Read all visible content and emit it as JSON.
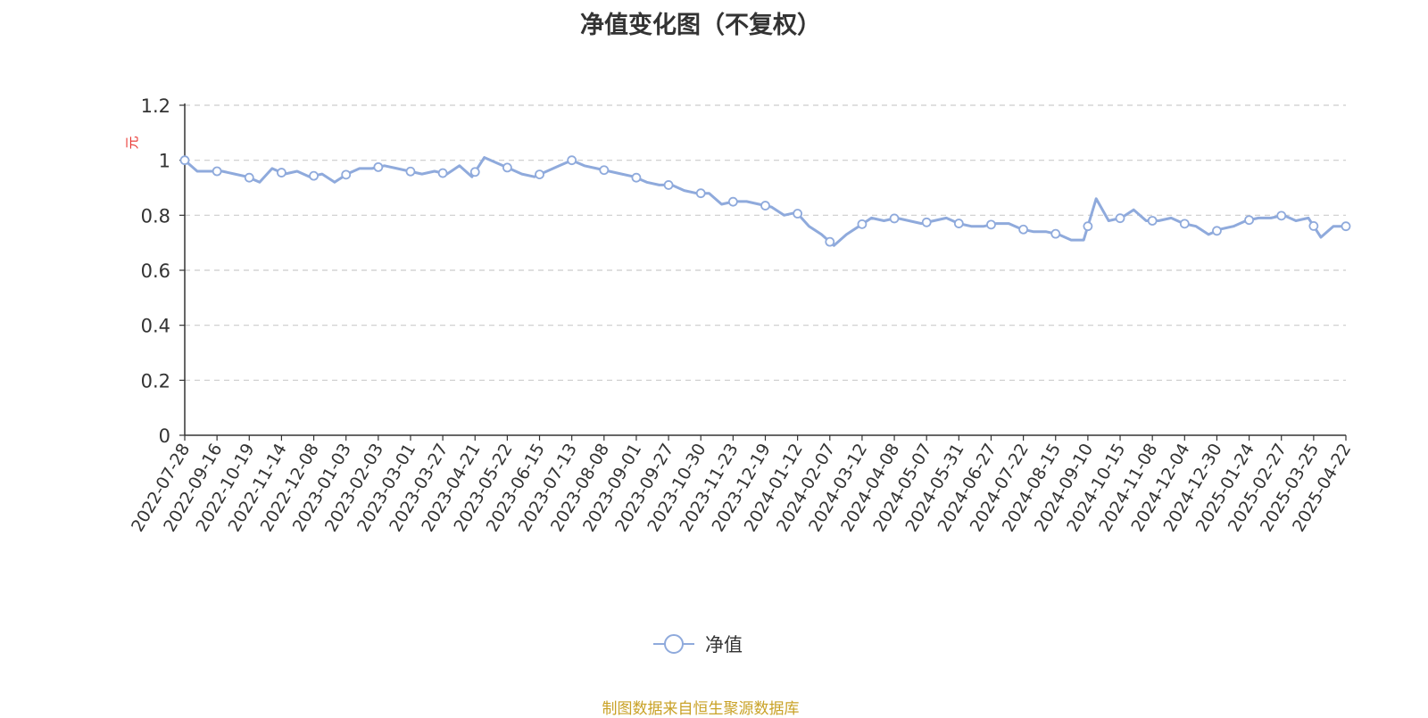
{
  "chart_data": {
    "type": "line",
    "title": "净值变化图（不复权）",
    "ylabel": "元",
    "ylim": [
      0,
      1.2
    ],
    "yticks": [
      "0",
      "0.2",
      "0.4",
      "0.6",
      "0.8",
      "1",
      "1.2"
    ],
    "grid": true,
    "legend_position": "bottom",
    "x_tick_labels": [
      "2022-07-28",
      "2022-09-16",
      "2022-10-19",
      "2022-11-14",
      "2022-12-08",
      "2023-01-03",
      "2023-02-03",
      "2023-03-01",
      "2023-03-27",
      "2023-04-21",
      "2023-05-22",
      "2023-06-15",
      "2023-07-13",
      "2023-08-08",
      "2023-09-01",
      "2023-09-27",
      "2023-10-30",
      "2023-11-23",
      "2023-12-19",
      "2024-01-12",
      "2024-02-07",
      "2024-03-12",
      "2024-04-08",
      "2024-05-07",
      "2024-05-31",
      "2024-06-27",
      "2024-07-22",
      "2024-08-15",
      "2024-09-10",
      "2024-10-15",
      "2024-11-08",
      "2024-12-04",
      "2024-12-30",
      "2025-01-24",
      "2025-02-27",
      "2025-03-25",
      "2025-04-22"
    ],
    "series": [
      {
        "name": "净值",
        "color": "#8faadc",
        "values": [
          1.0,
          0.96,
          0.96,
          0.96,
          0.95,
          0.94,
          0.92,
          0.97,
          0.95,
          0.96,
          0.94,
          0.95,
          0.92,
          0.95,
          0.97,
          0.97,
          0.98,
          0.97,
          0.96,
          0.95,
          0.96,
          0.95,
          0.98,
          0.94,
          1.01,
          0.99,
          0.97,
          0.95,
          0.94,
          0.96,
          0.98,
          1.0,
          0.98,
          0.97,
          0.96,
          0.95,
          0.94,
          0.92,
          0.91,
          0.91,
          0.89,
          0.88,
          0.88,
          0.84,
          0.85,
          0.85,
          0.84,
          0.83,
          0.8,
          0.81,
          0.76,
          0.73,
          0.69,
          0.73,
          0.76,
          0.79,
          0.78,
          0.79,
          0.78,
          0.77,
          0.78,
          0.79,
          0.77,
          0.76,
          0.76,
          0.77,
          0.77,
          0.75,
          0.74,
          0.74,
          0.73,
          0.71,
          0.71,
          0.86,
          0.78,
          0.79,
          0.82,
          0.78,
          0.78,
          0.79,
          0.77,
          0.76,
          0.73,
          0.75,
          0.76,
          0.78,
          0.79,
          0.79,
          0.8,
          0.78,
          0.79,
          0.72,
          0.76,
          0.76
        ]
      }
    ],
    "marker_indices": [
      0,
      1,
      2,
      3,
      4,
      5,
      6,
      7,
      8,
      9,
      10,
      11,
      12,
      13,
      14,
      15,
      16,
      17,
      18,
      19,
      20,
      21,
      22,
      23,
      24,
      25,
      26,
      27,
      28,
      29,
      30,
      31,
      32,
      33,
      34,
      35,
      36
    ]
  },
  "source_note": "制图数据来自恒生聚源数据库"
}
